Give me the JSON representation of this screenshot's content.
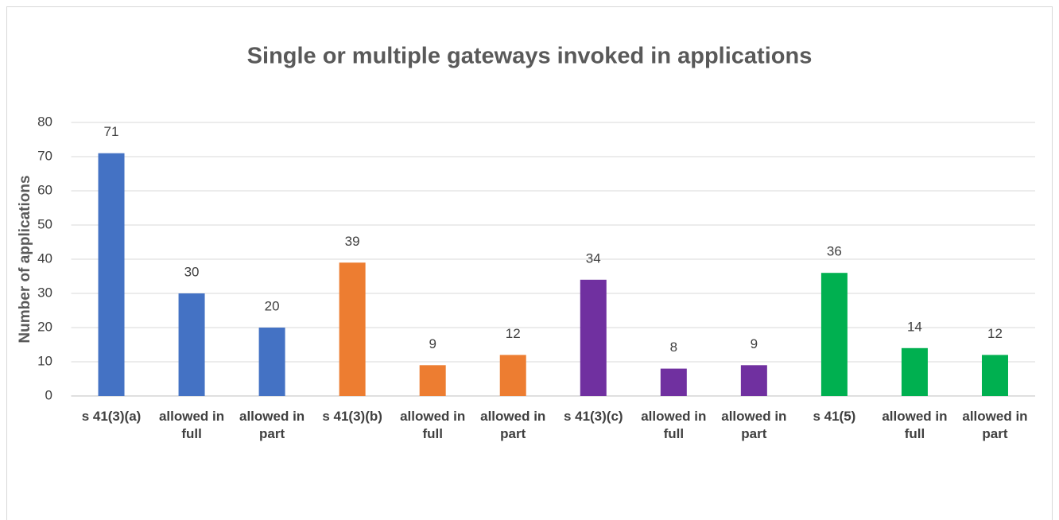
{
  "chart_data": {
    "type": "bar",
    "title": "Single or multiple gateways invoked in applications",
    "y_label": "Number of applications",
    "categories": [
      "s 41(3)(a)",
      "allowed in full",
      "allowed in part",
      "s 41(3)(b)",
      "allowed in full",
      "allowed in part",
      "s 41(3)(c)",
      "allowed in full",
      "allowed in part",
      "s 41(5)",
      "allowed in full",
      "allowed in part"
    ],
    "values": [
      71,
      30,
      20,
      39,
      9,
      12,
      34,
      8,
      9,
      36,
      14,
      12
    ],
    "colors": [
      "#4472c4",
      "#4472c4",
      "#4472c4",
      "#ed7d31",
      "#ed7d31",
      "#ed7d31",
      "#7030a0",
      "#7030a0",
      "#7030a0",
      "#00b050",
      "#00b050",
      "#00b050"
    ],
    "ylim": [
      0,
      80
    ],
    "yticks": [
      0,
      10,
      20,
      30,
      40,
      50,
      60,
      70,
      80
    ],
    "grid": true
  }
}
